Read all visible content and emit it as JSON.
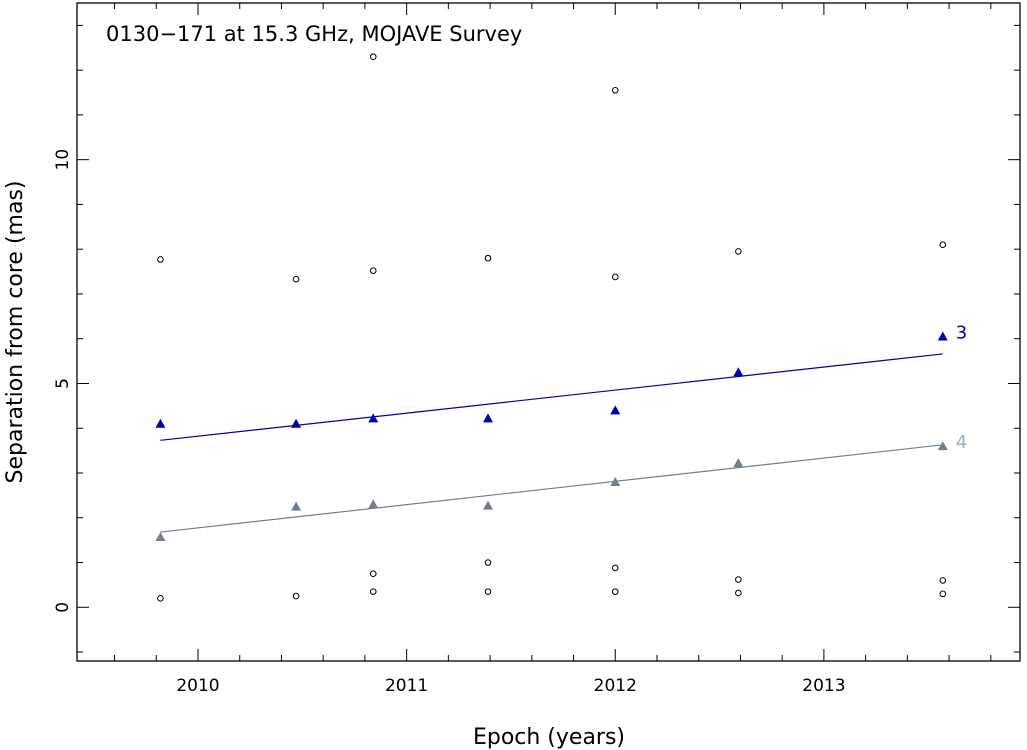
{
  "chart_data": {
    "type": "scatter",
    "title": "0130−171 at 15.3 GHz, MOJAVE Survey",
    "xlabel": "Epoch (years)",
    "ylabel": "Separation from core (mas)",
    "xlim": [
      2009.42,
      2013.94
    ],
    "ylim": [
      -1.2,
      13.5
    ],
    "x_ticks": [
      2010,
      2011,
      2012,
      2013
    ],
    "y_ticks": [
      0,
      5,
      10
    ],
    "grid": false,
    "series": [
      {
        "name": "3",
        "color": "#0000aa",
        "marker": "triangle",
        "points": [
          [
            2009.82,
            4.1
          ],
          [
            2010.47,
            4.1
          ],
          [
            2010.84,
            4.22
          ],
          [
            2011.39,
            4.22
          ],
          [
            2012.0,
            4.4
          ],
          [
            2012.59,
            5.25
          ],
          [
            2013.57,
            6.05
          ]
        ],
        "fit": [
          [
            2009.82,
            3.73
          ],
          [
            2013.57,
            5.66
          ]
        ]
      },
      {
        "name": "4",
        "color": "#708090",
        "label_color": "#9aaecc",
        "marker": "triangle",
        "points": [
          [
            2009.82,
            1.57
          ],
          [
            2010.47,
            2.25
          ],
          [
            2010.84,
            2.3
          ],
          [
            2011.39,
            2.27
          ],
          [
            2012.0,
            2.8
          ],
          [
            2012.59,
            3.22
          ],
          [
            2013.57,
            3.6
          ]
        ],
        "fit": [
          [
            2009.82,
            1.68
          ],
          [
            2013.57,
            3.63
          ]
        ]
      }
    ],
    "other_components": {
      "marker": "open-circle",
      "color": "#000000",
      "points": [
        [
          2009.82,
          7.77
        ],
        [
          2009.82,
          0.2
        ],
        [
          2010.47,
          7.33
        ],
        [
          2010.47,
          0.25
        ],
        [
          2010.84,
          12.3
        ],
        [
          2010.84,
          7.52
        ],
        [
          2010.84,
          0.75
        ],
        [
          2010.84,
          0.35
        ],
        [
          2011.39,
          7.8
        ],
        [
          2011.39,
          1.0
        ],
        [
          2011.39,
          0.35
        ],
        [
          2012.0,
          11.55
        ],
        [
          2012.0,
          7.38
        ],
        [
          2012.0,
          0.88
        ],
        [
          2012.0,
          0.35
        ],
        [
          2012.59,
          7.95
        ],
        [
          2012.59,
          0.62
        ],
        [
          2012.59,
          0.32
        ],
        [
          2013.57,
          8.1
        ],
        [
          2013.57,
          0.6
        ],
        [
          2013.57,
          0.3
        ]
      ]
    }
  }
}
